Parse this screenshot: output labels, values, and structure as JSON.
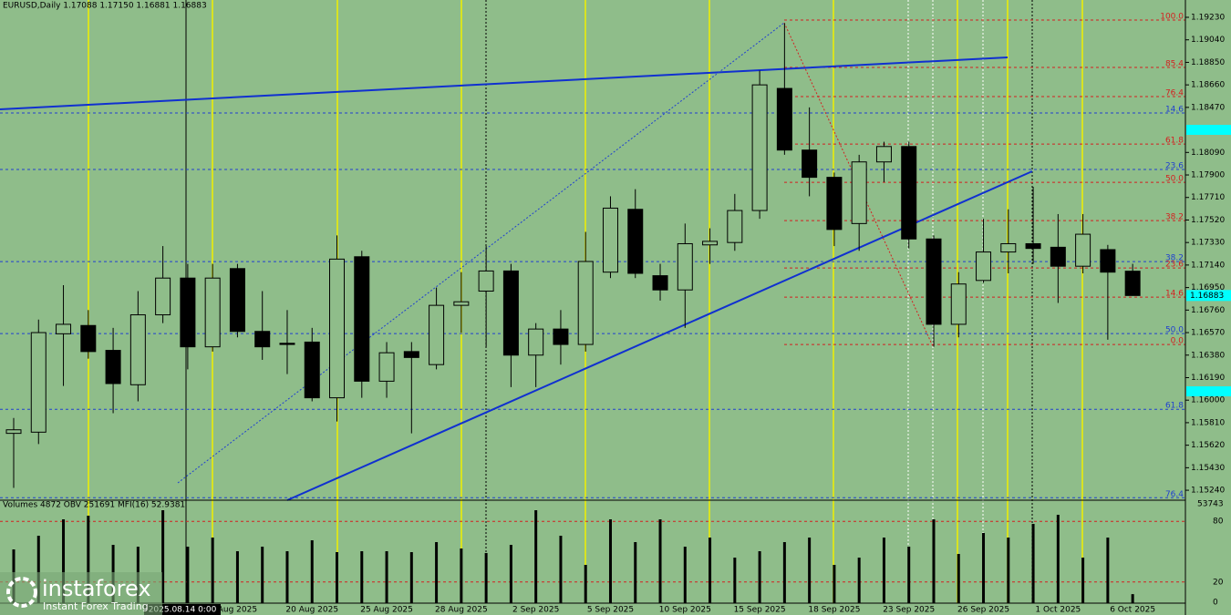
{
  "chart_data": {
    "type": "candlestick",
    "header": "EURUSD,Daily  1.17088 1.17150 1.16881 1.16883",
    "panel_header": "Volumes 4872  OBV 251691  MFI(16) 52.9381",
    "crosshair_label": "2025.08.14 0:00",
    "logo": {
      "name": "instaforex",
      "tagline": "Instant Forex Trading"
    },
    "up_color": "#8fbd8a",
    "down_color": "#000000",
    "categories": [
      null,
      null,
      null,
      null,
      null,
      null,
      null,
      null,
      null,
      "Aug 2025",
      null,
      null,
      "20 Aug 2025",
      null,
      null,
      "25 Aug 2025",
      null,
      null,
      "28 Aug 2025",
      null,
      null,
      "2 Sep 2025",
      null,
      null,
      "5 Sep 2025",
      null,
      null,
      "10 Sep 2025",
      null,
      null,
      "15 Sep 2025",
      null,
      null,
      "18 Sep 2025",
      null,
      null,
      "23 Sep 2025",
      null,
      null,
      "26 Sep 2025",
      null,
      null,
      "1 Oct 2025",
      null,
      null,
      "6 Oct 2025"
    ],
    "open": [
      1.1572,
      1.1573,
      1.1656,
      1.1663,
      1.1642,
      1.1613,
      1.1672,
      1.1703,
      1.1645,
      1.1711,
      1.1658,
      1.1648,
      1.1649,
      1.1602,
      1.1721,
      1.1616,
      1.1641,
      1.163,
      1.168,
      1.1692,
      1.1709,
      1.1638,
      1.166,
      1.1647,
      1.1708,
      1.1761,
      1.1705,
      1.1693,
      1.1731,
      1.1733,
      1.176,
      1.1863,
      1.1811,
      1.1788,
      1.1749,
      1.1801,
      1.1814,
      1.1736,
      1.1664,
      1.1701,
      1.1725,
      1.1732,
      1.1729,
      1.1713,
      1.1727,
      1.17088
    ],
    "high": [
      1.1585,
      1.1668,
      1.1697,
      1.1676,
      1.1661,
      1.1692,
      1.173,
      1.1715,
      1.1715,
      1.1715,
      1.1692,
      1.1676,
      1.1661,
      1.1739,
      1.1726,
      1.1649,
      1.1649,
      1.1695,
      1.1708,
      1.173,
      1.1715,
      1.1665,
      1.1676,
      1.1742,
      1.1772,
      1.1778,
      1.1715,
      1.1749,
      1.1745,
      1.1774,
      1.1878,
      1.1918,
      1.1847,
      1.1792,
      1.1807,
      1.1818,
      1.1818,
      1.1739,
      1.1708,
      1.1753,
      1.1761,
      1.178,
      1.1757,
      1.1757,
      1.1731,
      1.1715
    ],
    "low": [
      1.1526,
      1.1563,
      1.1612,
      1.1635,
      1.1589,
      1.1599,
      1.1665,
      1.1626,
      1.1641,
      1.1653,
      1.1634,
      1.1622,
      1.1599,
      1.1582,
      1.1602,
      1.1602,
      1.1572,
      1.1626,
      1.1657,
      1.1645,
      1.1611,
      1.1611,
      1.163,
      1.1641,
      1.1703,
      1.1703,
      1.1684,
      1.1661,
      1.1715,
      1.1726,
      1.1753,
      1.1807,
      1.1772,
      1.173,
      1.1726,
      1.1784,
      1.1728,
      1.1645,
      1.1653,
      1.1699,
      1.1707,
      1.1715,
      1.1682,
      1.1707,
      1.1651,
      1.16881
    ],
    "close": [
      1.1575,
      1.1657,
      1.1664,
      1.1641,
      1.1614,
      1.1672,
      1.1703,
      1.1645,
      1.1703,
      1.1658,
      1.1645,
      1.1647,
      1.1602,
      1.1719,
      1.1616,
      1.164,
      1.1636,
      1.168,
      1.1683,
      1.1709,
      1.1638,
      1.166,
      1.1647,
      1.1717,
      1.1762,
      1.1707,
      1.1693,
      1.1732,
      1.1734,
      1.176,
      1.1866,
      1.1811,
      1.1788,
      1.1744,
      1.1801,
      1.1814,
      1.1736,
      1.1664,
      1.1698,
      1.1725,
      1.1732,
      1.1728,
      1.1713,
      1.174,
      1.1708,
      1.16883
    ],
    "volume": [
      29087,
      36482,
      45356,
      47328,
      31552,
      30566,
      50286,
      30566,
      35496,
      28101,
      30566,
      28101,
      34017,
      27608,
      28101,
      28101,
      27608,
      33031,
      29580,
      27115,
      31552,
      50286,
      36482,
      20706,
      45356,
      33031,
      45356,
      30566,
      35496,
      24650,
      28101,
      33031,
      35496,
      20706,
      24650,
      35496,
      30566,
      45356,
      26622,
      37961,
      35496,
      42891,
      47821,
      24650,
      35496,
      4872
    ],
    "ylim": [
      1.15156,
      1.19376
    ],
    "yticks": [
      {
        "value": 1.1923,
        "label": "1.19230"
      },
      {
        "value": 1.1904,
        "label": "1.19040"
      },
      {
        "value": 1.1885,
        "label": "1.18850"
      },
      {
        "value": 1.1866,
        "label": "1.18660"
      },
      {
        "value": 1.1847,
        "label": "1.18470"
      },
      {
        "value": 1.1809,
        "label": "1.18090"
      },
      {
        "value": 1.179,
        "label": "1.17900"
      },
      {
        "value": 1.1771,
        "label": "1.17710"
      },
      {
        "value": 1.1752,
        "label": "1.17520"
      },
      {
        "value": 1.1733,
        "label": "1.17330"
      },
      {
        "value": 1.1714,
        "label": "1.17140"
      },
      {
        "value": 1.1695,
        "label": "1.16950"
      },
      {
        "value": 1.1676,
        "label": "1.16760"
      },
      {
        "value": 1.1657,
        "label": "1.16570"
      },
      {
        "value": 1.1638,
        "label": "1.16380"
      },
      {
        "value": 1.1619,
        "label": "1.16190"
      },
      {
        "value": 1.16,
        "label": "1.16000"
      },
      {
        "value": 1.1581,
        "label": "1.15810"
      },
      {
        "value": 1.1562,
        "label": "1.15620"
      },
      {
        "value": 1.1543,
        "label": "1.15430"
      },
      {
        "value": 1.1524,
        "label": "1.15240"
      }
    ],
    "bid": {
      "value": 1.16883,
      "label": "1.16883"
    },
    "fib_levels": [
      {
        "label": "100.0",
        "value": 1.19207,
        "color": "#d42020",
        "from": "peak"
      },
      {
        "label": "85.4",
        "value": 1.18807,
        "color": "#d42020",
        "from": "peak"
      },
      {
        "label": "76.4",
        "value": 1.18561,
        "color": "#d42020",
        "from": "peak"
      },
      {
        "label": "61.8",
        "value": 1.18161,
        "color": "#d42020",
        "from": "peak"
      },
      {
        "label": "50.0",
        "value": 1.17838,
        "color": "#d42020",
        "from": "peak"
      },
      {
        "label": "38.2",
        "value": 1.17515,
        "color": "#d42020",
        "from": "peak"
      },
      {
        "label": "23.6",
        "value": 1.17115,
        "color": "#d42020",
        "from": "peak"
      },
      {
        "label": "14.6",
        "value": 1.16869,
        "color": "#d42020",
        "from": "peak"
      },
      {
        "label": "0.0",
        "value": 1.16469,
        "color": "#d42020",
        "from": "peak"
      },
      {
        "label": "14.6",
        "value": 1.18423,
        "color": "#2040d0",
        "from": "start"
      },
      {
        "label": "23.6",
        "value": 1.17946,
        "color": "#2040d0",
        "from": "start"
      },
      {
        "label": "38.2",
        "value": 1.17169,
        "color": "#2040d0",
        "from": "start"
      },
      {
        "label": "50.0",
        "value": 1.16562,
        "color": "#2040d0",
        "from": "start"
      },
      {
        "label": "61.8",
        "value": 1.15923,
        "color": "#2040d0",
        "from": "start"
      },
      {
        "label": "76.4",
        "value": 1.15177,
        "color": "#2040d0",
        "from": "start"
      }
    ],
    "vol_ylim": [
      0,
      53743
    ],
    "mfi_ylim": [
      0,
      100
    ],
    "mfi_yticks": [
      0,
      20,
      80
    ]
  }
}
